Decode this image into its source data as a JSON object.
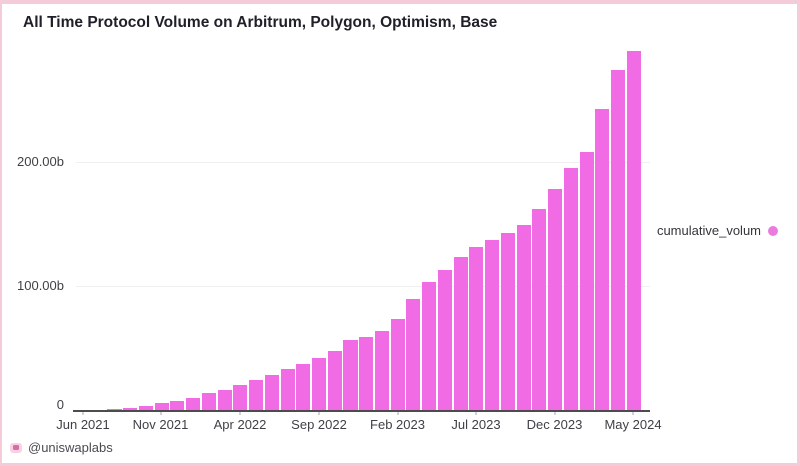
{
  "title": "All Time Protocol Volume on Arbitrum, Polygon, Optimism, Base",
  "legend": {
    "label": "cumulative_volum"
  },
  "footer": {
    "handle": "@uniswaplabs"
  },
  "colors": {
    "bar": "#f06be4",
    "legend_dot": "#ea7ce0",
    "frame_border": "#f4ccd9",
    "axis_line": "#4c4c4c",
    "text_dark": "#20202a",
    "text_tick": "#3f3f46"
  },
  "chart_data": {
    "type": "bar",
    "title": "All Time Protocol Volume on Arbitrum, Polygon, Optimism, Base",
    "series_name": "cumulative_volum",
    "unit": "billions USD",
    "x": [
      "Jun 2021",
      "Jul 2021",
      "Aug 2021",
      "Sep 2021",
      "Oct 2021",
      "Nov 2021",
      "Dec 2021",
      "Jan 2022",
      "Feb 2022",
      "Mar 2022",
      "Apr 2022",
      "May 2022",
      "Jun 2022",
      "Jul 2022",
      "Aug 2022",
      "Sep 2022",
      "Oct 2022",
      "Nov 2022",
      "Dec 2022",
      "Jan 2023",
      "Feb 2023",
      "Mar 2023",
      "Apr 2023",
      "May 2023",
      "Jun 2023",
      "Jul 2023",
      "Aug 2023",
      "Sep 2023",
      "Oct 2023",
      "Nov 2023",
      "Dec 2023",
      "Jan 2024",
      "Feb 2024",
      "Mar 2024",
      "Apr 2024",
      "May 2024"
    ],
    "values": [
      0.1,
      0.4,
      1.0,
      1.9,
      3.5,
      5.5,
      7.5,
      10,
      13.5,
      16.5,
      20,
      24,
      28,
      33,
      37,
      42,
      48,
      56.5,
      59,
      64,
      74,
      90,
      104,
      113,
      124,
      132,
      138,
      143,
      150,
      163,
      179,
      196,
      209,
      244,
      275,
      291
    ],
    "y_ticks": [
      "0",
      "100.00b",
      "200.00b"
    ],
    "x_tick_labels": [
      "Jun 2021",
      "Nov 2021",
      "Apr 2022",
      "Sep 2022",
      "Feb 2023",
      "Jul 2023",
      "Dec 2023",
      "May 2024"
    ],
    "ylim": [
      0,
      300
    ],
    "grid": "faint horizontal lines at labeled ticks",
    "legend_position": "right-middle, outside plot"
  }
}
